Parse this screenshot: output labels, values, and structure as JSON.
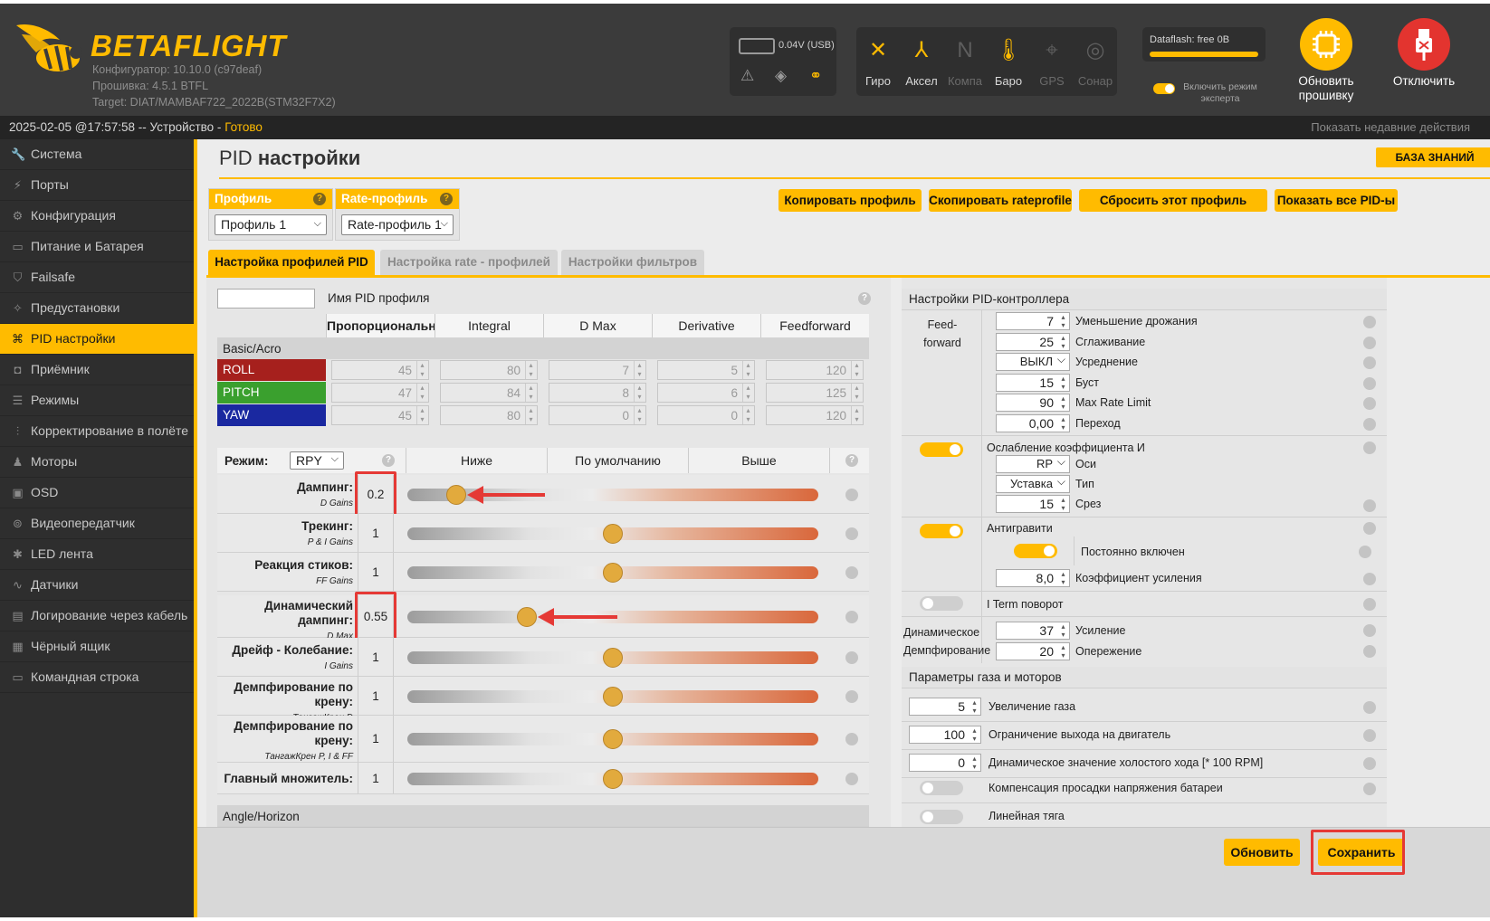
{
  "header": {
    "logo": "BETAFLIGHT",
    "configurator": "Конфигуратор: 10.10.0 (c97deaf)",
    "firmware": "Прошивка: 4.5.1 BTFL",
    "target": "Target: DIAT/MAMBAF722_2022B(STM32F7X2)",
    "battery": "0.04V (USB)",
    "sensors": [
      {
        "label": "Гиро",
        "icon": "gyro-icon",
        "active": true
      },
      {
        "label": "Аксел",
        "icon": "accel-icon",
        "active": true
      },
      {
        "label": "Компа",
        "icon": "compass-icon",
        "active": false
      },
      {
        "label": "Баро",
        "icon": "baro-icon",
        "active": true
      },
      {
        "label": "GPS",
        "icon": "gps-icon",
        "active": false
      },
      {
        "label": "Сонар",
        "icon": "sonar-icon",
        "active": false
      }
    ],
    "dataflash": "Dataflash: free 0B",
    "expert": "Включить режим эксперта",
    "update_fw": "Обновить прошивку",
    "disconnect": "Отключить"
  },
  "statusbar": {
    "left": "2025-02-05 @17:57:58 -- Устройство - ",
    "status": "Готово",
    "right": "Показать недавние действия"
  },
  "sidebar": [
    {
      "label": "Система",
      "icon": "wrench-icon"
    },
    {
      "label": "Порты",
      "icon": "plug-icon"
    },
    {
      "label": "Конфигурация",
      "icon": "gear-icon"
    },
    {
      "label": "Питание и Батарея",
      "icon": "battery-icon"
    },
    {
      "label": "Failsafe",
      "icon": "shield-icon"
    },
    {
      "label": "Предустановки",
      "icon": "wand-icon"
    },
    {
      "label": "PID настройки",
      "icon": "sitemap-icon",
      "active": true
    },
    {
      "label": "Приёмник",
      "icon": "receiver-icon"
    },
    {
      "label": "Режимы",
      "icon": "modes-icon"
    },
    {
      "label": "Корректирование в полёте",
      "icon": "sliders-icon"
    },
    {
      "label": "Моторы",
      "icon": "motor-icon"
    },
    {
      "label": "OSD",
      "icon": "osd-icon"
    },
    {
      "label": "Видеопередатчик",
      "icon": "antenna-icon"
    },
    {
      "label": "LED лента",
      "icon": "led-icon"
    },
    {
      "label": "Датчики",
      "icon": "sensor-icon"
    },
    {
      "label": "Логирование через кабель",
      "icon": "log-icon"
    },
    {
      "label": "Чёрный ящик",
      "icon": "blackbox-icon"
    },
    {
      "label": "Командная строка",
      "icon": "terminal-icon"
    }
  ],
  "page": {
    "title_a": "PID",
    "title_b": "настройки",
    "kb": "БАЗА ЗНАНИЙ",
    "profile_h": "Профиль",
    "profile_v": "Профиль 1",
    "rate_h": "Rate-профиль",
    "rate_v": "Rate-профиль 1",
    "btns": [
      "Копировать профиль",
      "Скопировать rateprofile",
      "Сбросить этот профиль",
      "Показать все PID-ы"
    ],
    "tabs": [
      "Настройка профилей PID",
      "Настройка rate - профилей",
      "Настройки фильтров"
    ]
  },
  "pid": {
    "name_label": "Имя PID профиля",
    "cols": [
      "Пропорциональный",
      "Integral",
      "D Max",
      "Derivative",
      "Feedforward"
    ],
    "group": "Basic/Acro",
    "rows": [
      {
        "axis": "ROLL",
        "color": "#a6201d",
        "v": [
          "45",
          "80",
          "7",
          "5",
          "120"
        ]
      },
      {
        "axis": "PITCH",
        "color": "#3aa02e",
        "v": [
          "47",
          "84",
          "8",
          "6",
          "125"
        ]
      },
      {
        "axis": "YAW",
        "color": "#1a28a0",
        "v": [
          "45",
          "80",
          "0",
          "0",
          "120"
        ]
      }
    ]
  },
  "sliders": {
    "mode_label": "Режим:",
    "mode": "RPY",
    "cols": [
      "Ниже",
      "По умолчанию",
      "Выше"
    ],
    "rows": [
      {
        "name": "Дампинг:",
        "sub": "D Gains",
        "value": "0.2",
        "pos": 0.12
      },
      {
        "name": "Трекинг:",
        "sub": "P & I Gains",
        "value": "1",
        "pos": 0.5
      },
      {
        "name": "Реакция стиков:",
        "sub": "FF Gains",
        "value": "1",
        "pos": 0.5
      },
      {
        "name": "Динамический дампинг:",
        "sub": "D Max",
        "value": "0.55",
        "pos": 0.29
      },
      {
        "name": "Дрейф - Колебание:",
        "sub": "I Gains",
        "value": "1",
        "pos": 0.5
      },
      {
        "name": "Демпфирование по крену:",
        "sub": "ТангажКрен D",
        "value": "1",
        "pos": 0.5
      },
      {
        "name": "Демпфирование по крену:",
        "sub": "ТангажКрен P, I & FF",
        "value": "1",
        "pos": 0.5
      },
      {
        "name": "Главный множитель:",
        "sub": "",
        "value": "1",
        "pos": 0.5
      }
    ],
    "next": "Angle/Horizon"
  },
  "controller": {
    "title": "Настройки PID-контроллера",
    "ff_label": "Feed-forward",
    "ff": [
      {
        "v": "7",
        "l": "Уменьшение дрожания"
      },
      {
        "v": "25",
        "l": "Сглаживание"
      },
      {
        "v": "ВЫКЛ",
        "l": "Усреднение",
        "sel": true
      },
      {
        "v": "15",
        "l": "Буст"
      },
      {
        "v": "90",
        "l": "Max Rate Limit"
      },
      {
        "v": "0,00",
        "l": "Переход"
      }
    ],
    "iterm": "Ослабление коэффициента И",
    "iterm_axes": "RP",
    "iterm_axes_l": "Оси",
    "iterm_type": "Уставка",
    "iterm_type_l": "Тип",
    "iterm_cut": "15",
    "iterm_cut_l": "Срез",
    "ag": "Антигравити",
    "ag_always": "Постоянно включен",
    "ag_gain": "8,0",
    "ag_gain_l": "Коэффициент усиления",
    "rot": "I Term поворот",
    "dyn_label": "Динамическое Демпфирование",
    "dyn_gain": "37",
    "dyn_gain_l": "Усиление",
    "dyn_adv": "20",
    "dyn_adv_l": "Опережение"
  },
  "throttle": {
    "title": "Параметры газа и моторов",
    "rows": [
      {
        "v": "5",
        "l": "Увеличение газа"
      },
      {
        "v": "100",
        "l": "Ограничение выхода на двигатель"
      },
      {
        "v": "0",
        "l": "Динамическое значение холостого хода [* 100 RPM]"
      }
    ],
    "comp": "Компенсация просадки напряжения батареи",
    "linear": "Линейная тяга"
  },
  "bottom": {
    "refresh": "Обновить",
    "save": "Сохранить"
  }
}
